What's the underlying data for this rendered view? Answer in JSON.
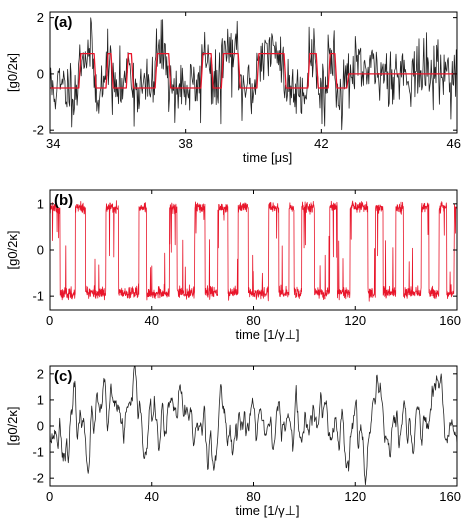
{
  "chart_data": [
    {
      "type": "line",
      "panel_label": "(a)",
      "xlabel": "time [μs]",
      "ylabel": "[g0/2κ]",
      "xlim": [
        34,
        46
      ],
      "ylim": [
        -2.1,
        2.2
      ],
      "xticks": [
        34,
        38,
        42,
        46
      ],
      "yticks": [
        -2,
        0,
        2
      ],
      "series": [
        {
          "kind": "noisy_trace",
          "color": "#222222",
          "x_range": [
            34,
            46
          ],
          "n_points": 600,
          "seed": 11,
          "jump_times": [
            34.85,
            35.3,
            35.65,
            35.8,
            36.25,
            36.4,
            37.1,
            37.5,
            38.45,
            38.75,
            39.05,
            39.55,
            40.1,
            40.9,
            41.6,
            41.85,
            42.2,
            42.4,
            42.75
          ],
          "low": -0.5,
          "high": 0.72,
          "after": 0.05,
          "noise": 0.55
        },
        {
          "kind": "telegraph",
          "color": "#e8152a",
          "x_range": [
            34,
            46
          ],
          "jump_times": [
            34.85,
            35.3,
            35.65,
            35.8,
            36.25,
            36.4,
            37.1,
            37.5,
            38.45,
            38.75,
            39.05,
            39.55,
            40.1,
            40.9,
            41.6,
            41.85,
            42.2,
            42.4,
            42.75
          ],
          "low": -0.5,
          "high": 0.72,
          "after": 0.0
        }
      ]
    },
    {
      "type": "line",
      "panel_label": "(b)",
      "xlabel": "time [1/γ⊥]",
      "ylabel": "[g0/2κ]",
      "xlim": [
        0,
        160
      ],
      "ylim": [
        -1.3,
        1.3
      ],
      "xticks": [
        0,
        40,
        80,
        120,
        160
      ],
      "yticks": [
        -1,
        0,
        1
      ],
      "series": [
        {
          "kind": "switching_trace",
          "color": "#e8152a",
          "x_range": [
            0,
            160
          ],
          "n_points": 1600,
          "seed": 5,
          "low": -0.98,
          "high": 0.97,
          "jump_times": [
            4,
            10,
            14,
            22,
            27,
            35,
            38,
            47,
            50,
            57,
            61,
            66,
            70,
            74,
            78,
            86,
            90,
            94,
            96,
            99,
            104,
            110,
            113,
            118,
            125,
            128,
            131,
            136,
            139,
            146,
            149,
            153,
            156,
            159
          ]
        }
      ]
    },
    {
      "type": "line",
      "panel_label": "(c)",
      "xlabel": "time [1/γ⊥]",
      "ylabel": "[g0/2κ]",
      "xlim": [
        0,
        160
      ],
      "ylim": [
        -2.3,
        2.3
      ],
      "xticks": [
        0,
        40,
        80,
        120,
        160
      ],
      "yticks": [
        -2,
        -1,
        0,
        1,
        2
      ],
      "series": [
        {
          "kind": "fluctuation_trace",
          "color": "#222222",
          "x_range": [
            0,
            160
          ],
          "n_points": 800,
          "seed": 23,
          "amplitude": 0.9
        }
      ]
    }
  ]
}
